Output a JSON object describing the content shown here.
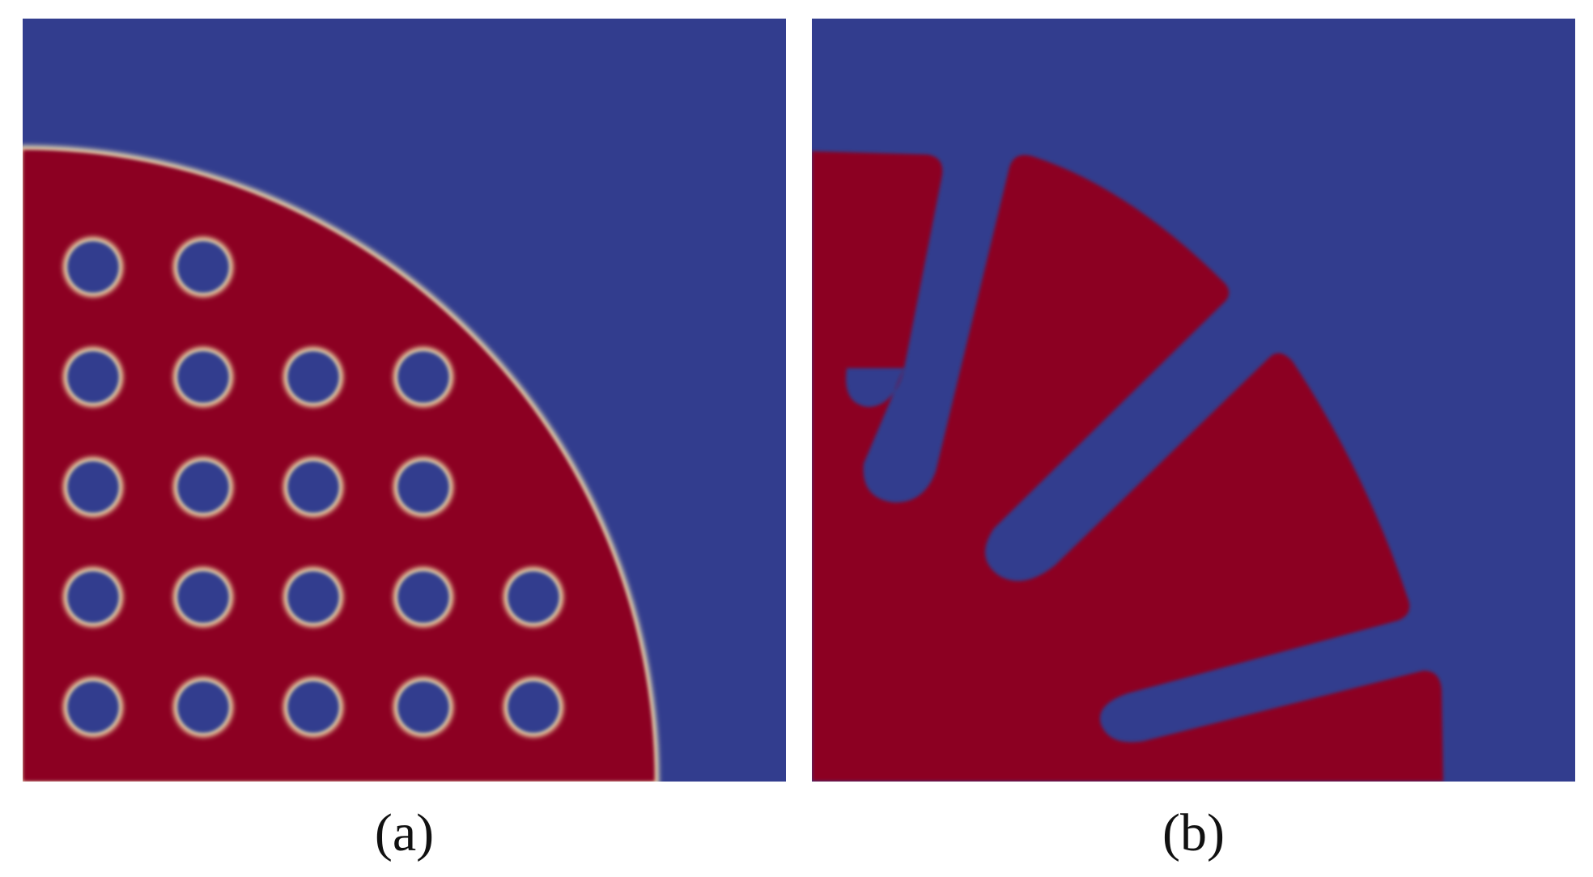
{
  "captions": {
    "a": "(a)",
    "b": "(b)"
  },
  "colors": {
    "background_phase": "#323d8e",
    "solid_phase": "#8c0420",
    "interface_light": "#f5e6b8",
    "page": "#ffffff"
  },
  "panel_a": {
    "hole_grid_rows": [
      2,
      4,
      4,
      5,
      5
    ]
  },
  "panel_b": {
    "slot_count": 4
  }
}
